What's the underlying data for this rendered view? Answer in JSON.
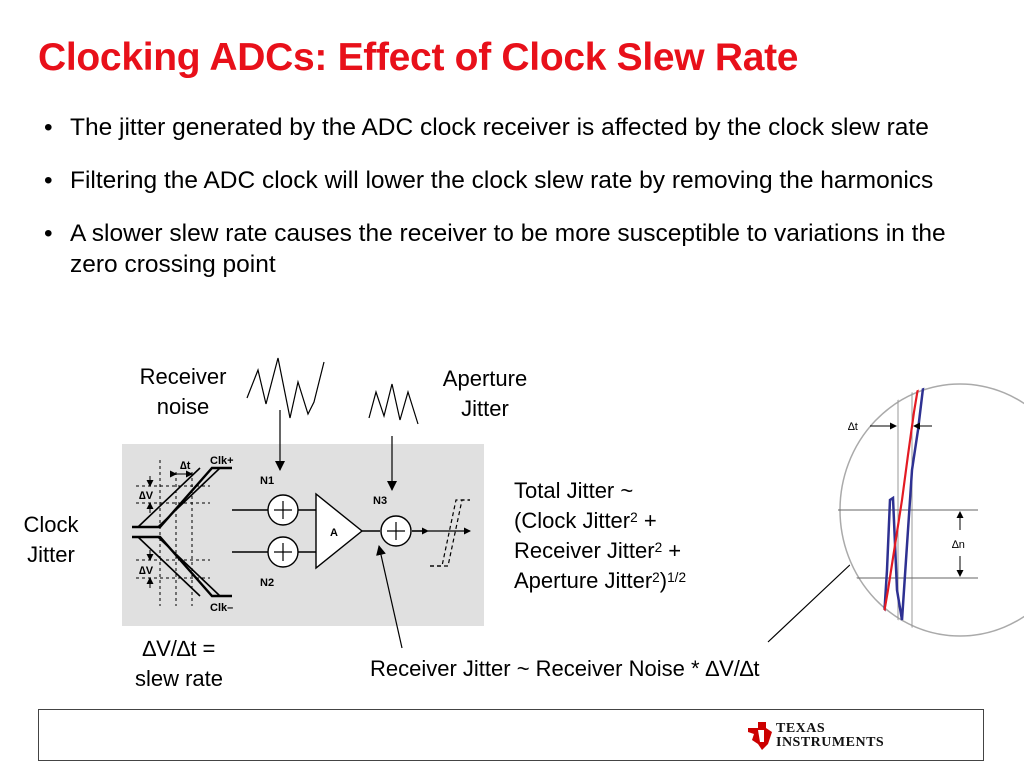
{
  "slide": {
    "title": "Clocking ADCs: Effect of Clock Slew Rate",
    "bullet_char": "•",
    "bullets": [
      "The jitter generated by the ADC clock receiver is affected by the clock slew rate",
      "Filtering the ADC clock will lower the clock slew rate by removing the harmonics",
      "A slower slew rate causes the receiver to be more susceptible to variations in the zero crossing point"
    ]
  },
  "diagram": {
    "receiver_noise": [
      "Receiver",
      "noise"
    ],
    "aperture_jitter": [
      "Aperture",
      "Jitter"
    ],
    "clock_jitter": [
      "Clock",
      "Jitter"
    ],
    "slew_rate": [
      "∆V/∆t =",
      "slew rate"
    ],
    "receiver_jitter_formula": "Receiver Jitter ~ Receiver Noise * ∆V/∆t",
    "total_jitter": {
      "line1": "Total Jitter ~",
      "line2_a": "(Clock Jitter",
      "line2_b": " +",
      "line3_a": "Receiver Jitter",
      "line3_b": " +",
      "line4_a": "Aperture Jitter",
      "line4_b": ")",
      "exp2": "2",
      "exp_half": "1/2"
    },
    "inner": {
      "clk_plus": "Clk+",
      "clk_minus": "Clk–",
      "n1": "N1",
      "n2": "N2",
      "n3": "N3",
      "amp": "A",
      "delta_t": "∆t",
      "delta_v": "∆V"
    },
    "zoom": {
      "delta_t": "∆t",
      "delta_n": "∆n"
    }
  },
  "footer": {
    "logo_line1": "Texas",
    "logo_line2": "Instruments"
  },
  "colors": {
    "title": "#e8101a",
    "red_trace": "#e31b23",
    "blue_trace": "#2e3192",
    "logo_red": "#cc0000"
  }
}
